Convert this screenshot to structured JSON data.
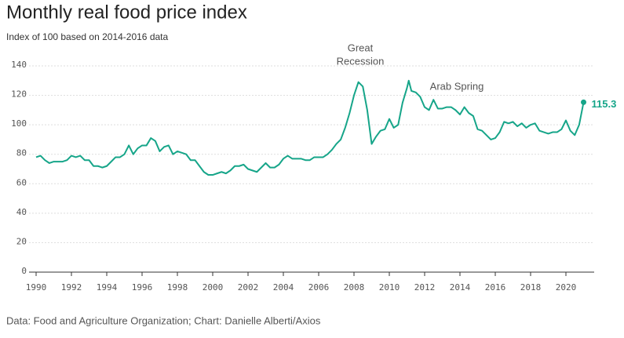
{
  "chart_data": {
    "type": "line",
    "title": "Monthly real food price index",
    "subtitle": "Index of 100 based on 2014-2016 data",
    "source": "Data: Food and Agriculture Organization; Chart: Danielle Alberti/Axios",
    "annotations": [
      "Great",
      "Recession",
      "Arab Spring"
    ],
    "x": [
      1990.0,
      1990.25,
      1990.5,
      1990.75,
      1991.0,
      1991.5,
      1991.75,
      1992.0,
      1992.25,
      1992.5,
      1992.75,
      1993.0,
      1993.25,
      1993.5,
      1993.75,
      1994.0,
      1994.25,
      1994.5,
      1994.75,
      1995.0,
      1995.25,
      1995.5,
      1995.75,
      1996.0,
      1996.25,
      1996.5,
      1996.75,
      1997.0,
      1997.25,
      1997.5,
      1997.75,
      1998.0,
      1998.25,
      1998.5,
      1998.75,
      1999.0,
      1999.25,
      1999.5,
      1999.75,
      2000.0,
      2000.25,
      2000.5,
      2000.75,
      2001.0,
      2001.25,
      2001.5,
      2001.75,
      2002.0,
      2002.25,
      2002.5,
      2002.75,
      2003.0,
      2003.25,
      2003.5,
      2003.75,
      2004.0,
      2004.25,
      2004.5,
      2004.75,
      2005.0,
      2005.25,
      2005.5,
      2005.75,
      2006.0,
      2006.25,
      2006.5,
      2006.75,
      2007.0,
      2007.25,
      2007.5,
      2007.75,
      2008.0,
      2008.25,
      2008.5,
      2008.75,
      2009.0,
      2009.25,
      2009.5,
      2009.75,
      2010.0,
      2010.25,
      2010.5,
      2010.75,
      2011.0,
      2011.1,
      2011.25,
      2011.5,
      2011.75,
      2012.0,
      2012.25,
      2012.5,
      2012.75,
      2013.0,
      2013.25,
      2013.5,
      2013.75,
      2014.0,
      2014.25,
      2014.5,
      2014.75,
      2015.0,
      2015.25,
      2015.5,
      2015.75,
      2016.0,
      2016.25,
      2016.5,
      2016.75,
      2017.0,
      2017.25,
      2017.5,
      2017.75,
      2018.0,
      2018.25,
      2018.5,
      2018.75,
      2019.0,
      2019.25,
      2019.5,
      2019.75,
      2020.0,
      2020.25,
      2020.5,
      2020.75,
      2021.0
    ],
    "series": [
      {
        "color": "#16a589",
        "values": [
          78,
          79,
          76,
          74,
          75,
          75,
          76,
          79,
          78,
          79,
          76,
          76,
          72,
          72,
          71,
          72,
          75,
          78,
          78,
          80,
          86,
          80,
          84,
          86,
          86,
          91,
          89,
          82,
          85,
          86,
          80,
          82,
          81,
          80,
          76,
          76,
          72,
          68,
          66,
          66,
          67,
          68,
          67,
          69,
          72,
          72,
          73,
          70,
          69,
          68,
          71,
          74,
          71,
          71,
          73,
          77,
          79,
          77,
          77,
          77,
          76,
          76,
          78,
          78,
          78,
          80,
          83,
          87,
          90,
          98,
          108,
          120,
          129,
          126,
          110,
          87,
          92,
          96,
          97,
          104,
          98,
          100,
          115,
          125,
          130,
          123,
          122,
          119,
          112,
          110,
          117,
          111,
          111,
          112,
          112,
          110,
          107,
          112,
          108,
          106,
          97,
          96,
          93,
          90,
          91,
          95,
          102,
          101,
          102,
          99,
          101,
          98,
          100,
          101,
          96,
          95,
          94,
          95,
          95,
          97,
          103,
          96,
          93,
          100,
          115.3
        ]
      }
    ],
    "xlim": [
      1989.6,
      2021.6
    ],
    "ylim": [
      0,
      140
    ],
    "xticks": [
      1990,
      1992,
      1994,
      1996,
      1998,
      2000,
      2002,
      2004,
      2006,
      2008,
      2010,
      2012,
      2014,
      2016,
      2018,
      2020
    ],
    "yticks": [
      0,
      20,
      40,
      60,
      80,
      100,
      120,
      140
    ],
    "grid": true
  }
}
